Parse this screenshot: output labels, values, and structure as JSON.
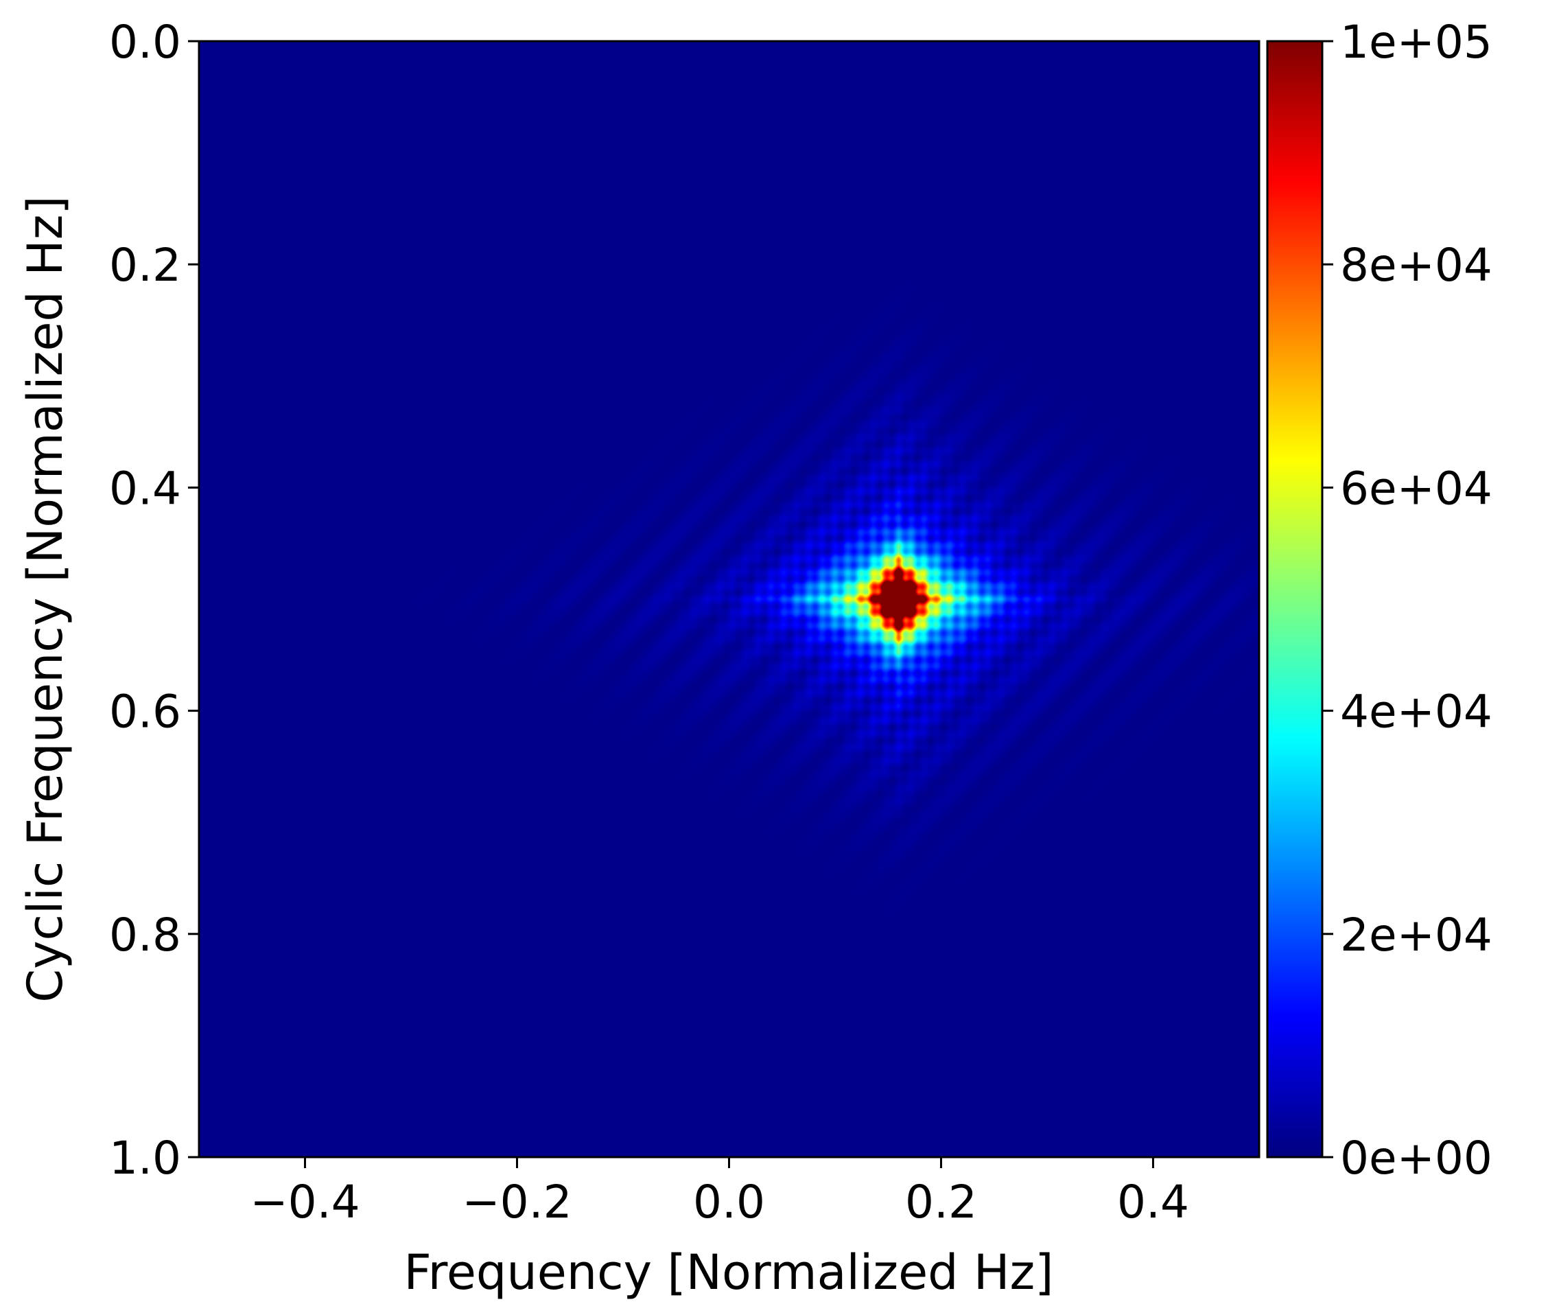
{
  "chart_data": [
    {
      "type": "heatmap",
      "title": "",
      "xlabel": "Frequency [Normalized Hz]",
      "ylabel": "Cyclic Frequency [Normalized Hz]",
      "xlim": [
        -0.5,
        0.5
      ],
      "ylim": [
        1.0,
        0.0
      ],
      "y_axis_inverted": true,
      "xticks": [
        -0.4,
        -0.2,
        0.0,
        0.2,
        0.4
      ],
      "xtick_labels": [
        "−0.4",
        "−0.2",
        "0.0",
        "0.2",
        "0.4"
      ],
      "yticks": [
        0.0,
        0.2,
        0.4,
        0.6,
        0.8,
        1.0
      ],
      "ytick_labels": [
        "0.0",
        "0.2",
        "0.4",
        "0.6",
        "0.8",
        "1.0"
      ],
      "colormap": "jet",
      "colorbar": {
        "range": [
          0,
          100000
        ],
        "ticks": [
          0,
          20000,
          40000,
          60000,
          80000,
          100000
        ],
        "tick_labels": [
          "0e+00",
          "2e+04",
          "4e+04",
          "6e+04",
          "8e+04",
          "1e+05"
        ]
      },
      "background_value": 0,
      "features": [
        {
          "name": "peak",
          "x": 0.16,
          "y": 0.5,
          "value": 100000,
          "x_halfwidth": 0.03,
          "y_halfwidth": 0.03
        },
        {
          "name": "main-lobe",
          "x": 0.16,
          "y": 0.5,
          "value": 55000,
          "x_halfwidth": 0.1,
          "y_halfwidth": 0.06
        },
        {
          "name": "diamond-halo",
          "x": 0.16,
          "y": 0.5,
          "value": 8000,
          "x_halfwidth": 0.16,
          "y_halfwidth": 0.14
        },
        {
          "name": "faint-streaks",
          "x": 0.16,
          "y": 0.5,
          "value": 4000,
          "x_halfwidth": 0.35,
          "y_halfwidth": 0.22
        }
      ],
      "grid": false,
      "legend": "none"
    }
  ]
}
